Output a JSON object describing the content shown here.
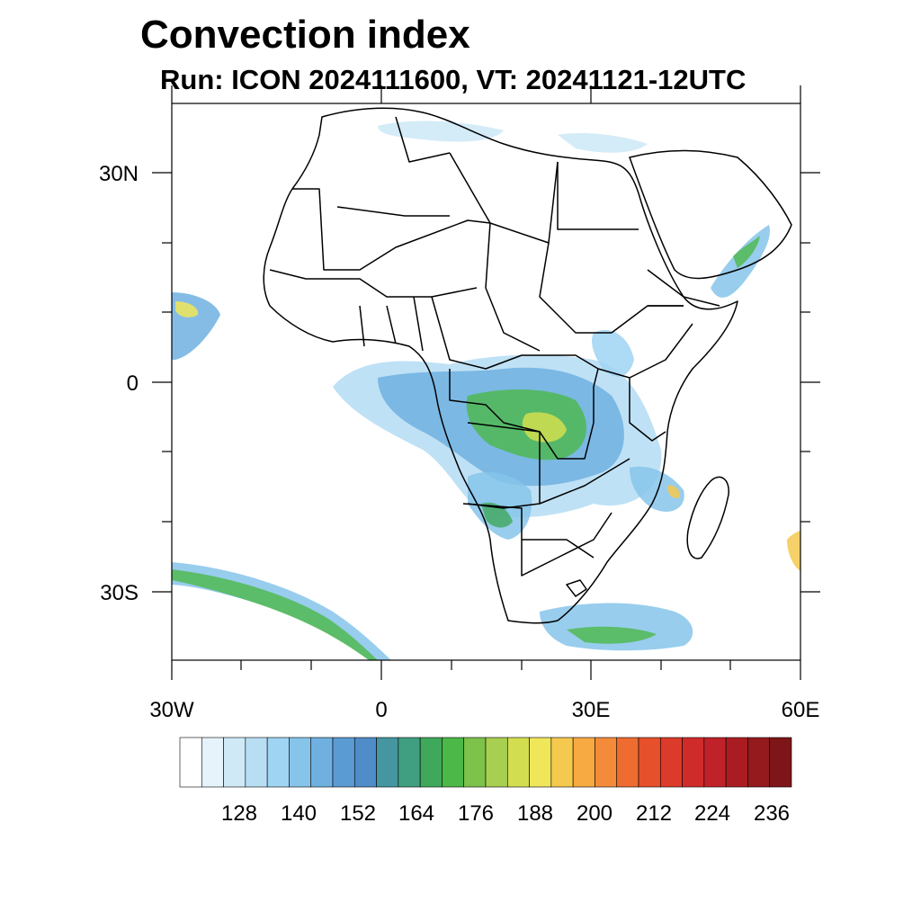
{
  "title": "Convection index",
  "subtitle": "Run: ICON 2024111600,  VT: 20241121-12UTC",
  "axes": {
    "x_ticks": [
      "30W",
      "0",
      "30E",
      "60E"
    ],
    "y_ticks": [
      "30N",
      "0",
      "30S"
    ]
  },
  "colorbar": {
    "tick_labels": [
      "128",
      "140",
      "152",
      "164",
      "176",
      "188",
      "200",
      "212",
      "224",
      "236"
    ],
    "colors": [
      "#ffffff",
      "#e6f3fb",
      "#cfe9f7",
      "#b8def4",
      "#9fd4f2",
      "#86c4ea",
      "#6fb0e0",
      "#5b9bd3",
      "#4f8cc8",
      "#4596a0",
      "#3f9f80",
      "#3fa85a",
      "#4cb848",
      "#7dc24a",
      "#a8cf4f",
      "#d2de50",
      "#f0e65a",
      "#f5c84e",
      "#f7a942",
      "#f38b3a",
      "#ee6c30",
      "#e6502b",
      "#dc3a2a",
      "#cf2b2a",
      "#bf2228",
      "#aa1c22",
      "#941a1e",
      "#7e1519"
    ]
  }
}
